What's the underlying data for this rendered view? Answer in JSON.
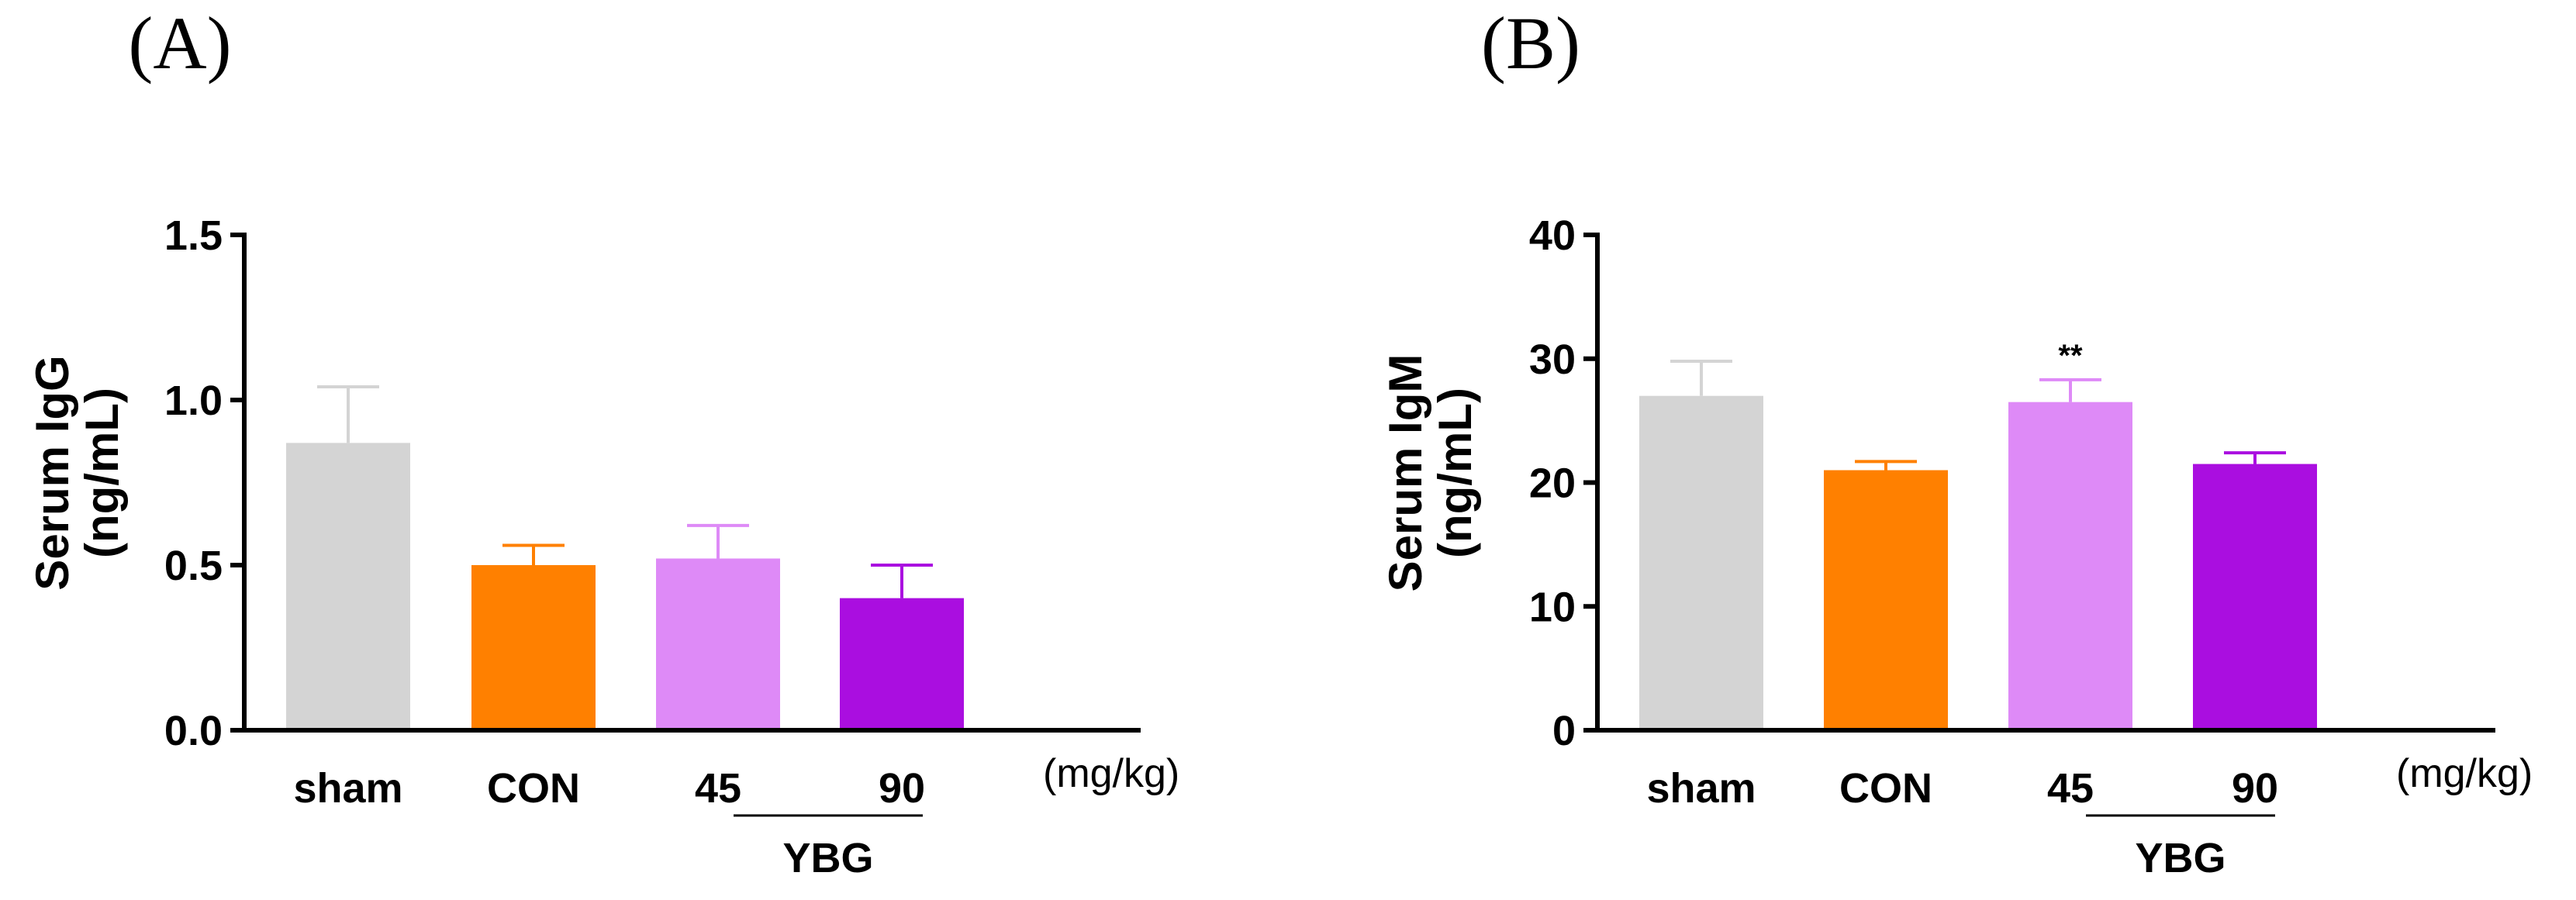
{
  "chart_data": [
    {
      "type": "bar",
      "panel_label": "(A)",
      "categories": [
        "sham",
        "CON",
        "45",
        "90"
      ],
      "values": [
        0.87,
        0.5,
        0.52,
        0.4
      ],
      "errors": [
        0.17,
        0.06,
        0.1,
        0.1
      ],
      "colors": [
        "#d4d4d4",
        "#ff8000",
        "#de8af7",
        "#aa0ee0"
      ],
      "ylabel_line1": "Serum IgG",
      "ylabel_line2": "(ng/mL)",
      "ylim": [
        0,
        1.5
      ],
      "yticks": [
        "0.0",
        "0.5",
        "1.0",
        "1.5"
      ],
      "unit_label": "(mg/kg)",
      "group_label": "YBG",
      "significance": [
        "",
        "",
        "",
        ""
      ]
    },
    {
      "type": "bar",
      "panel_label": "(B)",
      "categories": [
        "sham",
        "CON",
        "45",
        "90"
      ],
      "values": [
        27.0,
        21.0,
        26.5,
        21.5
      ],
      "errors": [
        2.8,
        0.7,
        1.8,
        0.9
      ],
      "colors": [
        "#d4d4d4",
        "#ff8000",
        "#de8af7",
        "#aa0ee0"
      ],
      "ylabel_line1": "Serum IgM",
      "ylabel_line2": "(ng/mL)",
      "ylim": [
        0,
        40
      ],
      "yticks": [
        "0",
        "10",
        "20",
        "30",
        "40"
      ],
      "unit_label": "(mg/kg)",
      "group_label": "YBG",
      "significance": [
        "",
        "",
        "**",
        ""
      ]
    }
  ]
}
